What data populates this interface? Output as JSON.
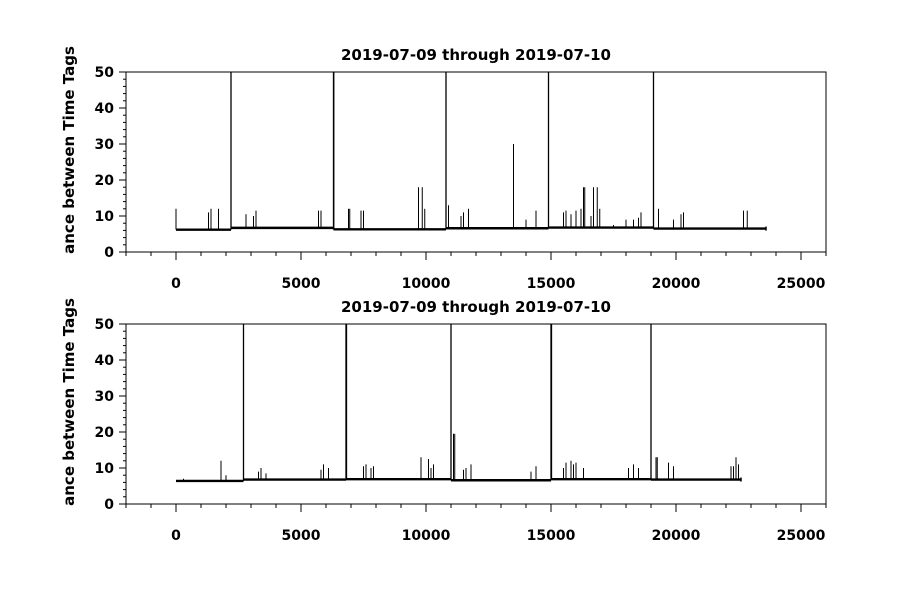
{
  "chart_data": [
    {
      "type": "line",
      "title": "2019-07-09 through 2019-07-10",
      "ylabel": "ance between Time Tags",
      "xlabel": "",
      "xlim": [
        -2000,
        26000
      ],
      "ylim": [
        0,
        50
      ],
      "xticks": [
        0,
        5000,
        10000,
        15000,
        20000,
        25000
      ],
      "yticks": [
        0,
        10,
        20,
        30,
        40,
        50
      ],
      "grid": false,
      "x_range": [
        0,
        23600
      ],
      "baseline": [
        {
          "x0": 0,
          "x1": 2200,
          "y": 6.2
        },
        {
          "x0": 2200,
          "x1": 6300,
          "y": 6.7
        },
        {
          "x0": 6300,
          "x1": 10800,
          "y": 6.3
        },
        {
          "x0": 10800,
          "x1": 14900,
          "y": 6.6
        },
        {
          "x0": 14900,
          "x1": 19100,
          "y": 6.8
        },
        {
          "x0": 19100,
          "x1": 23600,
          "y": 6.5
        }
      ],
      "spikes": [
        {
          "x": 0,
          "y": 12
        },
        {
          "x": 1300,
          "y": 11
        },
        {
          "x": 1400,
          "y": 12
        },
        {
          "x": 1700,
          "y": 12
        },
        {
          "x": 2200,
          "y": 50
        },
        {
          "x": 2800,
          "y": 10.5
        },
        {
          "x": 3100,
          "y": 10
        },
        {
          "x": 3200,
          "y": 11.5
        },
        {
          "x": 5700,
          "y": 11.5
        },
        {
          "x": 5800,
          "y": 11.5
        },
        {
          "x": 6300,
          "y": 50
        },
        {
          "x": 6310,
          "y": 50
        },
        {
          "x": 6900,
          "y": 12
        },
        {
          "x": 6950,
          "y": 12
        },
        {
          "x": 7400,
          "y": 11.5
        },
        {
          "x": 7500,
          "y": 11.5
        },
        {
          "x": 9700,
          "y": 18
        },
        {
          "x": 9850,
          "y": 18
        },
        {
          "x": 9950,
          "y": 12
        },
        {
          "x": 10800,
          "y": 50
        },
        {
          "x": 10900,
          "y": 13
        },
        {
          "x": 11400,
          "y": 10
        },
        {
          "x": 11500,
          "y": 11
        },
        {
          "x": 11700,
          "y": 12
        },
        {
          "x": 13500,
          "y": 30
        },
        {
          "x": 14000,
          "y": 9
        },
        {
          "x": 14400,
          "y": 11.5
        },
        {
          "x": 14900,
          "y": 50
        },
        {
          "x": 15500,
          "y": 11
        },
        {
          "x": 15600,
          "y": 11.5
        },
        {
          "x": 15800,
          "y": 10.5
        },
        {
          "x": 16000,
          "y": 11.5
        },
        {
          "x": 16200,
          "y": 12
        },
        {
          "x": 16300,
          "y": 18
        },
        {
          "x": 16350,
          "y": 18
        },
        {
          "x": 16600,
          "y": 10
        },
        {
          "x": 16700,
          "y": 18
        },
        {
          "x": 16850,
          "y": 18
        },
        {
          "x": 16950,
          "y": 12
        },
        {
          "x": 17500,
          "y": 7.5
        },
        {
          "x": 18000,
          "y": 9
        },
        {
          "x": 18300,
          "y": 9
        },
        {
          "x": 18500,
          "y": 9.5
        },
        {
          "x": 18600,
          "y": 11
        },
        {
          "x": 19100,
          "y": 50
        },
        {
          "x": 19300,
          "y": 12
        },
        {
          "x": 19900,
          "y": 9
        },
        {
          "x": 20200,
          "y": 10.5
        },
        {
          "x": 20300,
          "y": 11
        },
        {
          "x": 22700,
          "y": 11.5
        },
        {
          "x": 22850,
          "y": 11.5
        }
      ]
    },
    {
      "type": "line",
      "title": "2019-07-09 through 2019-07-10",
      "ylabel": "ance between Time Tags",
      "xlabel": "",
      "xlim": [
        -2000,
        26000
      ],
      "ylim": [
        0,
        50
      ],
      "xticks": [
        0,
        5000,
        10000,
        15000,
        20000,
        25000
      ],
      "yticks": [
        0,
        10,
        20,
        30,
        40,
        50
      ],
      "grid": false,
      "x_range": [
        0,
        22600
      ],
      "baseline": [
        {
          "x0": 0,
          "x1": 2700,
          "y": 6.4
        },
        {
          "x0": 2700,
          "x1": 6800,
          "y": 6.8
        },
        {
          "x0": 6800,
          "x1": 11000,
          "y": 6.9
        },
        {
          "x0": 11000,
          "x1": 15000,
          "y": 6.6
        },
        {
          "x0": 15000,
          "x1": 19000,
          "y": 6.9
        },
        {
          "x0": 19000,
          "x1": 22600,
          "y": 6.8
        }
      ],
      "spikes": [
        {
          "x": 300,
          "y": 7
        },
        {
          "x": 1800,
          "y": 12
        },
        {
          "x": 2000,
          "y": 8
        },
        {
          "x": 2700,
          "y": 50
        },
        {
          "x": 3300,
          "y": 9
        },
        {
          "x": 3400,
          "y": 10
        },
        {
          "x": 3600,
          "y": 8.5
        },
        {
          "x": 5800,
          "y": 9.5
        },
        {
          "x": 5900,
          "y": 11
        },
        {
          "x": 6100,
          "y": 10
        },
        {
          "x": 6800,
          "y": 50
        },
        {
          "x": 6820,
          "y": 50
        },
        {
          "x": 7500,
          "y": 10.5
        },
        {
          "x": 7600,
          "y": 11
        },
        {
          "x": 7800,
          "y": 10
        },
        {
          "x": 7900,
          "y": 10.5
        },
        {
          "x": 9800,
          "y": 13
        },
        {
          "x": 10100,
          "y": 12.5
        },
        {
          "x": 10200,
          "y": 10
        },
        {
          "x": 10300,
          "y": 11
        },
        {
          "x": 11000,
          "y": 50
        },
        {
          "x": 11100,
          "y": 19.5
        },
        {
          "x": 11150,
          "y": 19.5
        },
        {
          "x": 11500,
          "y": 9.5
        },
        {
          "x": 11600,
          "y": 10
        },
        {
          "x": 11800,
          "y": 11
        },
        {
          "x": 14200,
          "y": 9
        },
        {
          "x": 14400,
          "y": 10.5
        },
        {
          "x": 15000,
          "y": 50
        },
        {
          "x": 15020,
          "y": 50
        },
        {
          "x": 15500,
          "y": 10
        },
        {
          "x": 15600,
          "y": 11.5
        },
        {
          "x": 15800,
          "y": 12
        },
        {
          "x": 15900,
          "y": 11
        },
        {
          "x": 16000,
          "y": 11.5
        },
        {
          "x": 16300,
          "y": 10
        },
        {
          "x": 18100,
          "y": 10
        },
        {
          "x": 18300,
          "y": 11
        },
        {
          "x": 18500,
          "y": 10
        },
        {
          "x": 19000,
          "y": 50
        },
        {
          "x": 19200,
          "y": 13
        },
        {
          "x": 19250,
          "y": 13
        },
        {
          "x": 19700,
          "y": 11.5
        },
        {
          "x": 19900,
          "y": 10.5
        },
        {
          "x": 22200,
          "y": 10.5
        },
        {
          "x": 22300,
          "y": 10.5
        },
        {
          "x": 22400,
          "y": 13
        },
        {
          "x": 22500,
          "y": 11
        }
      ]
    }
  ]
}
